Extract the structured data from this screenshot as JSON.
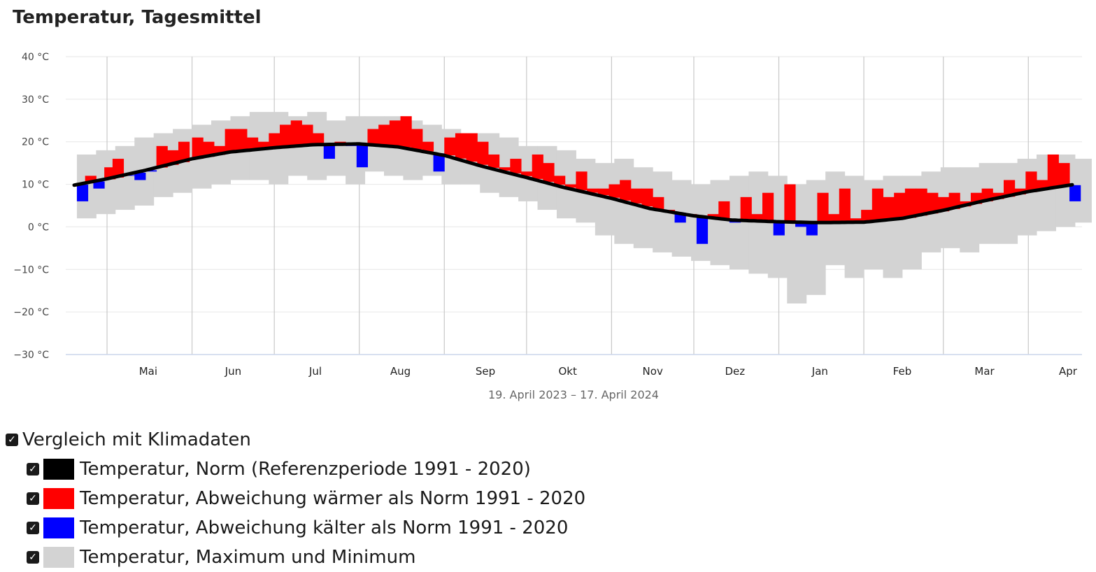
{
  "title": "Temperatur, Tagesmittel",
  "subtitle": "19. April 2023 – 17. April 2024",
  "colors": {
    "norm": "#000000",
    "warm": "#ff0000",
    "cold": "#0000ff",
    "range": "#d3d3d3",
    "grid": "#e6e6e6",
    "month_line": "#c8c8c8"
  },
  "legend": {
    "group_label": "Vergleich mit Klimadaten",
    "items": [
      {
        "label": "Temperatur, Norm (Referenzperiode 1991 - 2020)",
        "color": "#000000"
      },
      {
        "label": "Temperatur, Abweichung wärmer als Norm 1991 - 2020",
        "color": "#ff0000"
      },
      {
        "label": "Temperatur, Abweichung kälter als Norm 1991 - 2020",
        "color": "#0000ff"
      },
      {
        "label": "Temperatur, Maximum und Minimum",
        "color": "#d3d3d3"
      }
    ]
  },
  "chart_data": {
    "type": "bar",
    "y_unit": "°C",
    "ylim": [
      -30,
      40
    ],
    "y_ticks": [
      "40 °C",
      "30 °C",
      "20 °C",
      "10 °C",
      "0 °C",
      "−10 °C",
      "−20 °C",
      "−30 °C"
    ],
    "y_tick_values": [
      40,
      30,
      20,
      10,
      0,
      -10,
      -20,
      -30
    ],
    "x_ticks": [
      "Mai",
      "Jun",
      "Jul",
      "Aug",
      "Sep",
      "Okt",
      "Nov",
      "Dez",
      "Jan",
      "Feb",
      "Mar",
      "Apr"
    ],
    "x_range": [
      "2023-04-19",
      "2024-04-17"
    ],
    "month_lines": [
      "2023-05-01",
      "2023-06-01",
      "2023-07-01",
      "2023-08-01",
      "2023-09-01",
      "2023-10-01",
      "2023-11-01",
      "2023-12-01",
      "2024-01-01",
      "2024-02-01",
      "2024-03-01",
      "2024-04-01"
    ],
    "grid": true,
    "series": [
      {
        "name": "Temperatur, Norm (Referenzperiode 1991 - 2020)",
        "kind": "line",
        "dates": [
          "2023-04-19",
          "2023-05-01",
          "2023-05-15",
          "2023-06-01",
          "2023-06-15",
          "2023-07-01",
          "2023-07-15",
          "2023-08-01",
          "2023-08-15",
          "2023-09-01",
          "2023-09-15",
          "2023-10-01",
          "2023-10-15",
          "2023-11-01",
          "2023-11-15",
          "2023-12-01",
          "2023-12-15",
          "2024-01-01",
          "2024-01-15",
          "2024-02-01",
          "2024-02-15",
          "2024-03-01",
          "2024-03-15",
          "2024-04-01",
          "2024-04-17"
        ],
        "values": [
          9.8,
          11.3,
          13.3,
          16.0,
          17.6,
          18.6,
          19.3,
          19.5,
          18.8,
          16.8,
          14.2,
          11.6,
          9.2,
          6.7,
          4.3,
          2.6,
          1.6,
          1.2,
          1.0,
          1.1,
          2.0,
          3.9,
          6.0,
          8.3,
          9.9
        ]
      },
      {
        "name": "Temperatur, Tagesmittel (Abweichung)",
        "kind": "deviation",
        "dates": [
          "2023-04-20",
          "2023-04-23",
          "2023-04-26",
          "2023-04-30",
          "2023-05-03",
          "2023-05-07",
          "2023-05-11",
          "2023-05-15",
          "2023-05-19",
          "2023-05-23",
          "2023-05-27",
          "2023-06-01",
          "2023-06-05",
          "2023-06-09",
          "2023-06-13",
          "2023-06-17",
          "2023-06-21",
          "2023-06-25",
          "2023-06-29",
          "2023-07-03",
          "2023-07-07",
          "2023-07-11",
          "2023-07-15",
          "2023-07-19",
          "2023-07-23",
          "2023-07-27",
          "2023-07-31",
          "2023-08-04",
          "2023-08-08",
          "2023-08-12",
          "2023-08-16",
          "2023-08-20",
          "2023-08-24",
          "2023-08-28",
          "2023-09-01",
          "2023-09-05",
          "2023-09-09",
          "2023-09-13",
          "2023-09-17",
          "2023-09-21",
          "2023-09-25",
          "2023-09-29",
          "2023-10-03",
          "2023-10-07",
          "2023-10-11",
          "2023-10-15",
          "2023-10-19",
          "2023-10-23",
          "2023-10-27",
          "2023-10-31",
          "2023-11-04",
          "2023-11-08",
          "2023-11-12",
          "2023-11-16",
          "2023-11-20",
          "2023-11-24",
          "2023-11-28",
          "2023-12-02",
          "2023-12-06",
          "2023-12-10",
          "2023-12-14",
          "2023-12-18",
          "2023-12-22",
          "2023-12-26",
          "2023-12-30",
          "2024-01-03",
          "2024-01-07",
          "2024-01-11",
          "2024-01-15",
          "2024-01-19",
          "2024-01-23",
          "2024-01-27",
          "2024-01-31",
          "2024-02-04",
          "2024-02-08",
          "2024-02-12",
          "2024-02-16",
          "2024-02-20",
          "2024-02-24",
          "2024-02-28",
          "2024-03-03",
          "2024-03-07",
          "2024-03-11",
          "2024-03-15",
          "2024-03-19",
          "2024-03-23",
          "2024-03-27",
          "2024-03-31",
          "2024-04-04",
          "2024-04-08",
          "2024-04-12",
          "2024-04-16"
        ],
        "values": [
          6,
          12,
          9,
          14,
          16,
          12,
          11,
          13,
          19,
          18,
          20,
          21,
          20,
          19,
          23,
          23,
          21,
          20,
          22,
          24,
          25,
          24,
          22,
          16,
          20,
          19,
          14,
          23,
          24,
          25,
          26,
          23,
          20,
          13,
          21,
          22,
          22,
          20,
          17,
          14,
          16,
          13,
          17,
          15,
          12,
          10,
          13,
          9,
          9,
          10,
          11,
          9,
          9,
          7,
          4,
          1,
          3,
          -4,
          3,
          6,
          1,
          7,
          3,
          8,
          -2,
          10,
          0,
          -2,
          8,
          3,
          9,
          2,
          4,
          9,
          7,
          8,
          9,
          9,
          8,
          7,
          8,
          6,
          8,
          9,
          8,
          11,
          9,
          13,
          11,
          17,
          15,
          6
        ]
      },
      {
        "name": "Temperatur, Maximum und Minimum",
        "kind": "range",
        "dates": [
          "2023-04-20",
          "2023-04-27",
          "2023-05-04",
          "2023-05-11",
          "2023-05-18",
          "2023-05-25",
          "2023-06-01",
          "2023-06-08",
          "2023-06-15",
          "2023-06-22",
          "2023-06-29",
          "2023-07-06",
          "2023-07-13",
          "2023-07-20",
          "2023-07-27",
          "2023-08-03",
          "2023-08-10",
          "2023-08-17",
          "2023-08-24",
          "2023-08-31",
          "2023-09-07",
          "2023-09-14",
          "2023-09-21",
          "2023-09-28",
          "2023-10-05",
          "2023-10-12",
          "2023-10-19",
          "2023-10-26",
          "2023-11-02",
          "2023-11-09",
          "2023-11-16",
          "2023-11-23",
          "2023-11-30",
          "2023-12-07",
          "2023-12-14",
          "2023-12-21",
          "2023-12-28",
          "2024-01-04",
          "2024-01-11",
          "2024-01-18",
          "2024-01-25",
          "2024-02-01",
          "2024-02-08",
          "2024-02-15",
          "2024-02-22",
          "2024-02-29",
          "2024-03-07",
          "2024-03-14",
          "2024-03-21",
          "2024-03-28",
          "2024-04-04",
          "2024-04-11",
          "2024-04-17"
        ],
        "min": [
          2,
          3,
          4,
          5,
          7,
          8,
          9,
          10,
          11,
          11,
          10,
          12,
          11,
          12,
          10,
          13,
          12,
          11,
          12,
          10,
          10,
          8,
          7,
          6,
          4,
          2,
          1,
          -2,
          -4,
          -5,
          -6,
          -7,
          -8,
          -9,
          -10,
          -11,
          -12,
          -18,
          -16,
          -9,
          -12,
          -10,
          -12,
          -10,
          -6,
          -5,
          -6,
          -4,
          -4,
          -2,
          -1,
          0,
          1
        ],
        "max": [
          17,
          18,
          19,
          21,
          22,
          23,
          24,
          25,
          26,
          27,
          27,
          26,
          27,
          25,
          26,
          26,
          26,
          25,
          24,
          23,
          22,
          22,
          21,
          19,
          19,
          18,
          16,
          15,
          16,
          14,
          13,
          11,
          10,
          11,
          12,
          13,
          12,
          10,
          11,
          13,
          12,
          11,
          12,
          12,
          13,
          14,
          14,
          15,
          15,
          16,
          17,
          17,
          16
        ]
      }
    ]
  }
}
